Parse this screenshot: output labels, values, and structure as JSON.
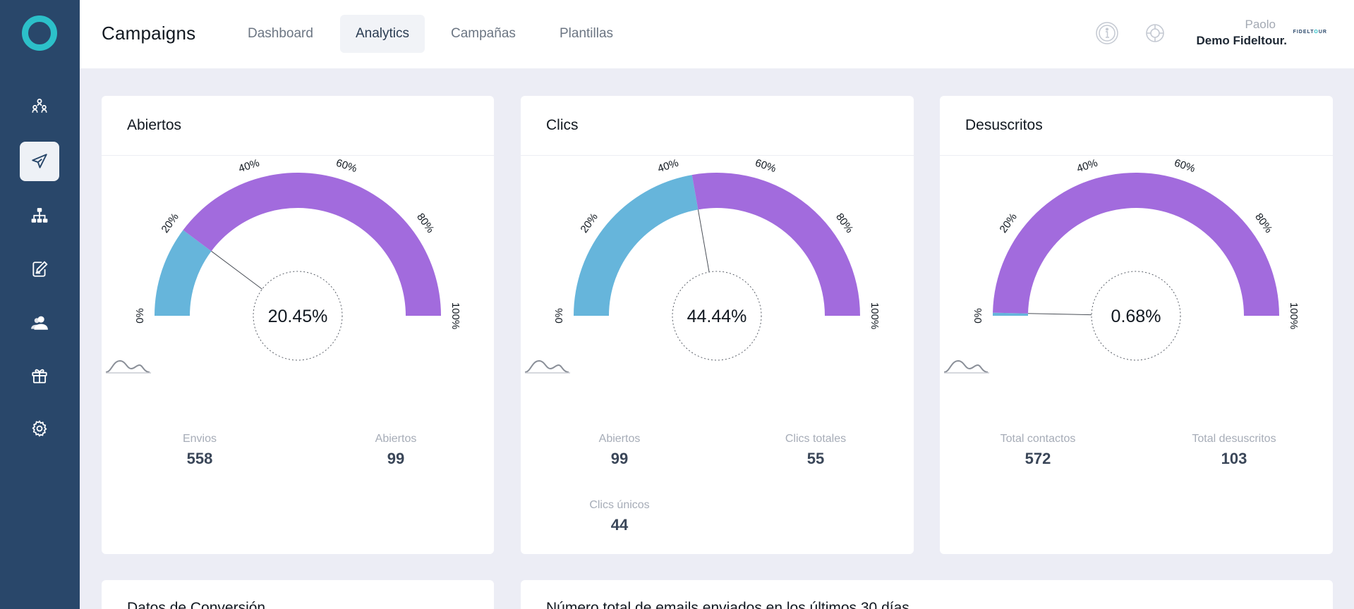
{
  "sidebar": {
    "items": [
      {
        "icon": "users-network-icon",
        "active": false
      },
      {
        "icon": "paper-plane-icon",
        "active": true
      },
      {
        "icon": "sitemap-icon",
        "active": false
      },
      {
        "icon": "edit-document-icon",
        "active": false
      },
      {
        "icon": "contacts-icon",
        "active": false
      },
      {
        "icon": "gift-icon",
        "active": false
      },
      {
        "icon": "gear-icon",
        "active": false
      }
    ]
  },
  "header": {
    "title": "Campaigns",
    "tabs": [
      {
        "label": "Dashboard",
        "active": false
      },
      {
        "label": "Analytics",
        "active": true
      },
      {
        "label": "Campañas",
        "active": false
      },
      {
        "label": "Plantillas",
        "active": false
      }
    ],
    "icons": [
      "info-icon",
      "help-lifebuoy-icon"
    ],
    "user_name": "Paolo",
    "company": "Demo Fideltour.",
    "brand_logo_text": "FIDELTOUR"
  },
  "colors": {
    "primary_segment": "#66b5db",
    "rest_segment": "#a26bdd",
    "sidebar": "#29476a",
    "accent": "#2cc0c9"
  },
  "gauge_ticks": [
    "0%",
    "20%",
    "40%",
    "60%",
    "80%",
    "100%"
  ],
  "cards": [
    {
      "title": "Abiertos",
      "percent": 20.45,
      "percent_label": "20.45%",
      "wave_icon": "distribution-icon",
      "stats": [
        {
          "label": "Envios",
          "value": "558"
        },
        {
          "label": "Abiertos",
          "value": "99"
        }
      ]
    },
    {
      "title": "Clics",
      "percent": 44.44,
      "percent_label": "44.44%",
      "wave_icon": "distribution-icon",
      "stats": [
        {
          "label": "Abiertos",
          "value": "99"
        },
        {
          "label": "Clics totales",
          "value": "55"
        },
        {
          "label": "Clics únicos",
          "value": "44"
        }
      ]
    },
    {
      "title": "Desuscritos",
      "percent": 0.68,
      "percent_label": "0.68%",
      "wave_icon": "distribution-icon",
      "stats": [
        {
          "label": "Total contactos",
          "value": "572"
        },
        {
          "label": "Total desuscritos",
          "value": "103"
        }
      ]
    }
  ],
  "bottom_cards": [
    {
      "title": "Datos de Conversión"
    },
    {
      "title": "Número total de emails enviados en los últimos 30 días"
    }
  ]
}
